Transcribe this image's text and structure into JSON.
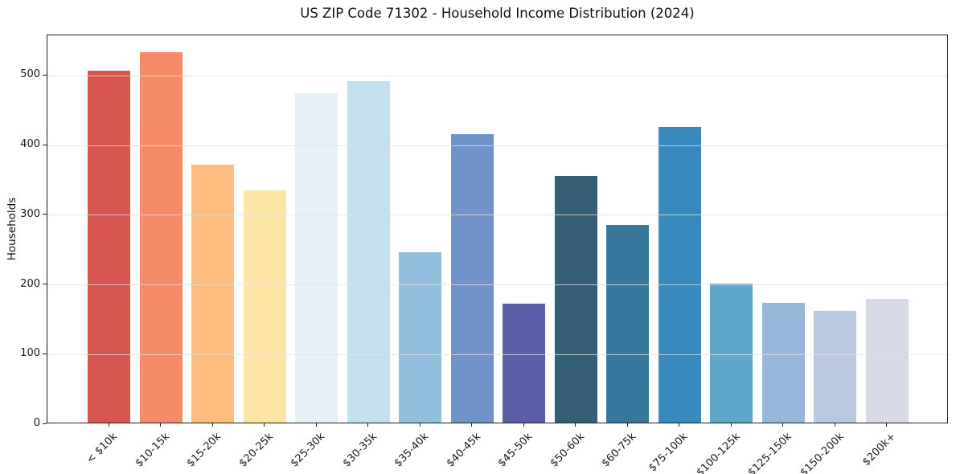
{
  "chart_data": {
    "type": "bar",
    "title": "US ZIP Code 71302 - Household Income Distribution (2024)",
    "xlabel": "",
    "ylabel": "Households",
    "categories": [
      "< $10k",
      "$10-15k",
      "$15-20k",
      "$20-25k",
      "$25-30k",
      "$30-35k",
      "$35-40k",
      "$40-45k",
      "$45-50k",
      "$50-60k",
      "$60-75k",
      "$75-100k",
      "$100-125k",
      "$125-150k",
      "$150-200k",
      "$200k+"
    ],
    "values": [
      505,
      531,
      370,
      333,
      473,
      490,
      245,
      414,
      171,
      354,
      284,
      424,
      200,
      172,
      160,
      178
    ],
    "bar_colors": [
      "#d7564f",
      "#f58a68",
      "#fcbd7f",
      "#fce5a4",
      "#e6f1f6",
      "#c3e0ee",
      "#92bfdd",
      "#7094c9",
      "#5c5fa7",
      "#345f77",
      "#38789d",
      "#3889bd",
      "#5fa7cb",
      "#96b9d9",
      "#bac9e1",
      "#d9dae8"
    ],
    "yticks": [
      0,
      100,
      200,
      300,
      400,
      500
    ],
    "ylim": [
      0,
      558
    ],
    "grid": "horizontal-only",
    "grid_color": "#e1e1e1",
    "legend": "none",
    "xtick_rotation_deg": 45
  }
}
